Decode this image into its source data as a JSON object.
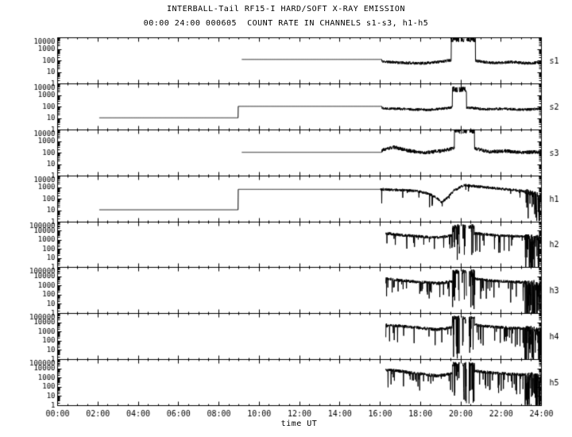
{
  "chart_data": {
    "type": "line",
    "title": "INTERBALL-Tail RF15-I HARD/SOFT X-RAY EMISSION",
    "subtitle": "00:00 24:00 000605  COUNT RATE IN CHANNELS s1-s3, h1-h5",
    "xlabel": "time UT",
    "x_range_hours": [
      0,
      24
    ],
    "grid": false,
    "legend": "right-side channel labels",
    "x_ticks": [
      "00:00",
      "02:00",
      "04:00",
      "06:00",
      "08:00",
      "10:00",
      "12:00",
      "14:00",
      "16:00",
      "18:00",
      "20:00",
      "22:00",
      "24:00"
    ],
    "panels": [
      {
        "label": "s1",
        "decades": 4,
        "ylim": [
          1,
          10000
        ],
        "yticks": [
          "10000",
          "1000",
          "100",
          "10",
          "1"
        ],
        "seed": 11,
        "segments": [
          {
            "kind": "flat",
            "t0": 9.15,
            "t1": 16.1,
            "level": 120
          },
          {
            "kind": "noise",
            "t0": 16.1,
            "t1": 19.55,
            "amp": 0.13,
            "levels": [
              [
                16.1,
                80
              ],
              [
                17.2,
                60
              ],
              [
                18.2,
                55
              ],
              [
                19.0,
                75
              ],
              [
                19.55,
                110
              ]
            ]
          },
          {
            "kind": "burst",
            "t0": 19.55,
            "t1": 20.75,
            "peak": 6500,
            "gaps": [
              [
                19.93,
                20.04
              ],
              [
                20.18,
                20.3
              ]
            ]
          },
          {
            "kind": "noise",
            "t0": 20.75,
            "t1": 24,
            "amp": 0.13,
            "levels": [
              [
                20.75,
                90
              ],
              [
                21.6,
                60
              ],
              [
                22.6,
                70
              ],
              [
                23.3,
                55
              ],
              [
                24,
                65
              ]
            ]
          }
        ]
      },
      {
        "label": "s2",
        "decades": 4,
        "ylim": [
          1,
          10000
        ],
        "yticks": [
          "10000",
          "1000",
          "100",
          "10",
          "1"
        ],
        "seed": 22,
        "segments": [
          {
            "kind": "flat",
            "t0": 2.08,
            "t1": 8.98,
            "level": 10
          },
          {
            "kind": "flat",
            "t0": 8.98,
            "t1": 16.1,
            "level": 100
          },
          {
            "kind": "noise",
            "t0": 16.1,
            "t1": 19.6,
            "amp": 0.12,
            "levels": [
              [
                16.1,
                70
              ],
              [
                17.5,
                55
              ],
              [
                18.5,
                50
              ],
              [
                19.2,
                65
              ],
              [
                19.6,
                80
              ]
            ]
          },
          {
            "kind": "burst",
            "t0": 19.6,
            "t1": 20.3,
            "peak": 2800,
            "gaps": [
              [
                19.87,
                19.95
              ]
            ]
          },
          {
            "kind": "noise",
            "t0": 20.3,
            "t1": 24,
            "amp": 0.12,
            "levels": [
              [
                20.3,
                80
              ],
              [
                21.2,
                55
              ],
              [
                22.2,
                60
              ],
              [
                23.1,
                50
              ],
              [
                24,
                60
              ]
            ]
          }
        ]
      },
      {
        "label": "s3",
        "decades": 4,
        "ylim": [
          1,
          10000
        ],
        "yticks": [
          "10000",
          "1000",
          "100",
          "10",
          "1"
        ],
        "seed": 33,
        "segments": [
          {
            "kind": "flat",
            "t0": 9.15,
            "t1": 16.1,
            "level": 100
          },
          {
            "kind": "noise",
            "t0": 16.1,
            "t1": 19.7,
            "amp": 0.16,
            "levels": [
              [
                16.1,
                150
              ],
              [
                16.7,
                280
              ],
              [
                17.4,
                140
              ],
              [
                18.2,
                90
              ],
              [
                19.0,
                130
              ],
              [
                19.7,
                220
              ]
            ]
          },
          {
            "kind": "burst",
            "t0": 19.7,
            "t1": 20.7,
            "peak": 7000,
            "gaps": [
              [
                20.0,
                20.12
              ],
              [
                20.34,
                20.46
              ]
            ]
          },
          {
            "kind": "noise",
            "t0": 20.7,
            "t1": 24,
            "amp": 0.16,
            "levels": [
              [
                20.7,
                220
              ],
              [
                21.4,
                110
              ],
              [
                22.2,
                130
              ],
              [
                23.1,
                95
              ],
              [
                24,
                115
              ]
            ]
          }
        ]
      },
      {
        "label": "h1",
        "decades": 4,
        "ylim": [
          1,
          10000
        ],
        "yticks": [
          "10000",
          "1000",
          "100",
          "10",
          "1"
        ],
        "seed": 44,
        "segments": [
          {
            "kind": "flat",
            "t0": 2.08,
            "t1": 8.98,
            "level": 10
          },
          {
            "kind": "flat",
            "t0": 8.98,
            "t1": 16.05,
            "level": 600
          },
          {
            "kind": "noise",
            "t0": 16.05,
            "t1": 23.2,
            "amp": 0.12,
            "ds": [
              0.02,
              1.2
            ],
            "levels": [
              [
                16.05,
                600
              ],
              [
                17.0,
                520
              ],
              [
                17.8,
                430
              ],
              [
                18.4,
                260
              ],
              [
                18.8,
                120
              ],
              [
                19.05,
                45
              ],
              [
                19.3,
                90
              ],
              [
                19.7,
                500
              ],
              [
                20.2,
                1400
              ],
              [
                20.8,
                1100
              ],
              [
                21.5,
                800
              ],
              [
                22.3,
                600
              ],
              [
                23.2,
                420
              ]
            ]
          },
          {
            "kind": "noise",
            "t0": 23.2,
            "t1": 24,
            "amp": 0.25,
            "ds": [
              0.3,
              2.5
            ],
            "levels": [
              [
                23.2,
                400
              ],
              [
                23.6,
                250
              ],
              [
                24,
                150
              ]
            ]
          }
        ]
      },
      {
        "label": "h2",
        "decades": 5,
        "ylim": [
          1,
          100000
        ],
        "yticks": [
          "100000",
          "10000",
          "1000",
          "100",
          "10",
          "1"
        ],
        "seed": 55,
        "segments": [
          {
            "kind": "noise",
            "t0": 16.3,
            "t1": 19.6,
            "amp": 0.16,
            "ds": [
              0.05,
              1.6
            ],
            "levels": [
              [
                16.3,
                5000
              ],
              [
                16.8,
                3500
              ],
              [
                17.4,
                2800
              ],
              [
                18.0,
                2200
              ],
              [
                18.6,
                1700
              ],
              [
                19.1,
                2000
              ],
              [
                19.6,
                3000
              ]
            ]
          },
          {
            "kind": "burst",
            "t0": 19.6,
            "t1": 20.7,
            "peak": 25000,
            "ds": [
              0.25,
              4.0
            ],
            "gaps": [
              [
                19.96,
                20.1
              ],
              [
                20.26,
                20.4
              ]
            ]
          },
          {
            "kind": "noise",
            "t0": 20.7,
            "t1": 23.2,
            "amp": 0.15,
            "ds": [
              0.07,
              2.0
            ],
            "levels": [
              [
                20.7,
                5000
              ],
              [
                21.6,
                3200
              ],
              [
                22.4,
                2600
              ],
              [
                23.2,
                2100
              ]
            ]
          },
          {
            "kind": "noise",
            "t0": 23.2,
            "t1": 24,
            "amp": 0.3,
            "ds": [
              0.45,
              4.5
            ],
            "levels": [
              [
                23.2,
                2200
              ],
              [
                23.6,
                1800
              ],
              [
                24,
                1500
              ]
            ]
          }
        ]
      },
      {
        "label": "h3",
        "decades": 5,
        "ylim": [
          1,
          100000
        ],
        "yticks": [
          "100000",
          "10000",
          "1000",
          "100",
          "10",
          "1"
        ],
        "seed": 66,
        "segments": [
          {
            "kind": "noise",
            "t0": 16.3,
            "t1": 19.6,
            "amp": 0.17,
            "ds": [
              0.06,
              1.8
            ],
            "levels": [
              [
                16.3,
                6000
              ],
              [
                17.0,
                3800
              ],
              [
                17.6,
                2900
              ],
              [
                18.2,
                2200
              ],
              [
                18.8,
                1800
              ],
              [
                19.2,
                2100
              ],
              [
                19.6,
                3200
              ]
            ]
          },
          {
            "kind": "burst",
            "t0": 19.6,
            "t1": 20.7,
            "peak": 30000,
            "ds": [
              0.28,
              4.2
            ],
            "gaps": [
              [
                19.94,
                20.08
              ],
              [
                20.3,
                20.44
              ]
            ]
          },
          {
            "kind": "noise",
            "t0": 20.7,
            "t1": 23.2,
            "amp": 0.16,
            "ds": [
              0.08,
              2.2
            ],
            "levels": [
              [
                20.7,
                5500
              ],
              [
                21.6,
                3400
              ],
              [
                22.4,
                2700
              ],
              [
                23.2,
                2200
              ]
            ]
          },
          {
            "kind": "noise",
            "t0": 23.2,
            "t1": 24,
            "amp": 0.32,
            "ds": [
              0.5,
              4.6
            ],
            "levels": [
              [
                23.2,
                2300
              ],
              [
                23.7,
                1900
              ],
              [
                24,
                1600
              ]
            ]
          }
        ]
      },
      {
        "label": "h4",
        "decades": 5,
        "ylim": [
          1,
          100000
        ],
        "yticks": [
          "100000",
          "10000",
          "1000",
          "100",
          "10",
          "1"
        ],
        "seed": 77,
        "segments": [
          {
            "kind": "noise",
            "t0": 16.3,
            "t1": 19.6,
            "amp": 0.17,
            "ds": [
              0.06,
              1.9
            ],
            "levels": [
              [
                16.3,
                5500
              ],
              [
                17.0,
                4000
              ],
              [
                17.6,
                3000
              ],
              [
                18.2,
                2300
              ],
              [
                18.8,
                1700
              ],
              [
                19.2,
                2000
              ],
              [
                19.6,
                3100
              ]
            ]
          },
          {
            "kind": "burst",
            "t0": 19.6,
            "t1": 20.7,
            "peak": 28000,
            "ds": [
              0.28,
              4.2
            ],
            "gaps": [
              [
                19.95,
                20.09
              ],
              [
                20.28,
                20.42
              ]
            ]
          },
          {
            "kind": "noise",
            "t0": 20.7,
            "t1": 23.2,
            "amp": 0.16,
            "ds": [
              0.08,
              2.2
            ],
            "levels": [
              [
                20.7,
                5300
              ],
              [
                21.6,
                3300
              ],
              [
                22.4,
                2600
              ],
              [
                23.2,
                2100
              ]
            ]
          },
          {
            "kind": "noise",
            "t0": 23.2,
            "t1": 24,
            "amp": 0.32,
            "ds": [
              0.5,
              4.6
            ],
            "levels": [
              [
                23.2,
                2200
              ],
              [
                23.7,
                1800
              ],
              [
                24,
                1500
              ]
            ]
          }
        ]
      },
      {
        "label": "h5",
        "decades": 5,
        "ylim": [
          1,
          100000
        ],
        "yticks": [
          "100000",
          "10000",
          "1000",
          "100",
          "10",
          "1"
        ],
        "seed": 88,
        "segments": [
          {
            "kind": "noise",
            "t0": 16.3,
            "t1": 19.6,
            "amp": 0.18,
            "ds": [
              0.07,
              2.0
            ],
            "levels": [
              [
                16.3,
                7000
              ],
              [
                17.0,
                5000
              ],
              [
                17.6,
                3200
              ],
              [
                18.2,
                2300
              ],
              [
                18.8,
                1600
              ],
              [
                19.2,
                1900
              ],
              [
                19.6,
                2800
              ]
            ]
          },
          {
            "kind": "burst",
            "t0": 19.6,
            "t1": 20.7,
            "peak": 28000,
            "ds": [
              0.3,
              4.4
            ],
            "gaps": [
              [
                19.95,
                20.12
              ],
              [
                20.3,
                20.42
              ]
            ]
          },
          {
            "kind": "noise",
            "t0": 20.7,
            "t1": 23.2,
            "amp": 0.17,
            "ds": [
              0.09,
              2.4
            ],
            "levels": [
              [
                20.7,
                5200
              ],
              [
                21.6,
                3300
              ],
              [
                22.4,
                2500
              ],
              [
                23.2,
                2000
              ]
            ]
          },
          {
            "kind": "noise",
            "t0": 23.2,
            "t1": 24,
            "amp": 0.33,
            "ds": [
              0.5,
              4.8
            ],
            "levels": [
              [
                23.2,
                2100
              ],
              [
                23.7,
                1700
              ],
              [
                24,
                1400
              ]
            ]
          }
        ]
      }
    ]
  }
}
